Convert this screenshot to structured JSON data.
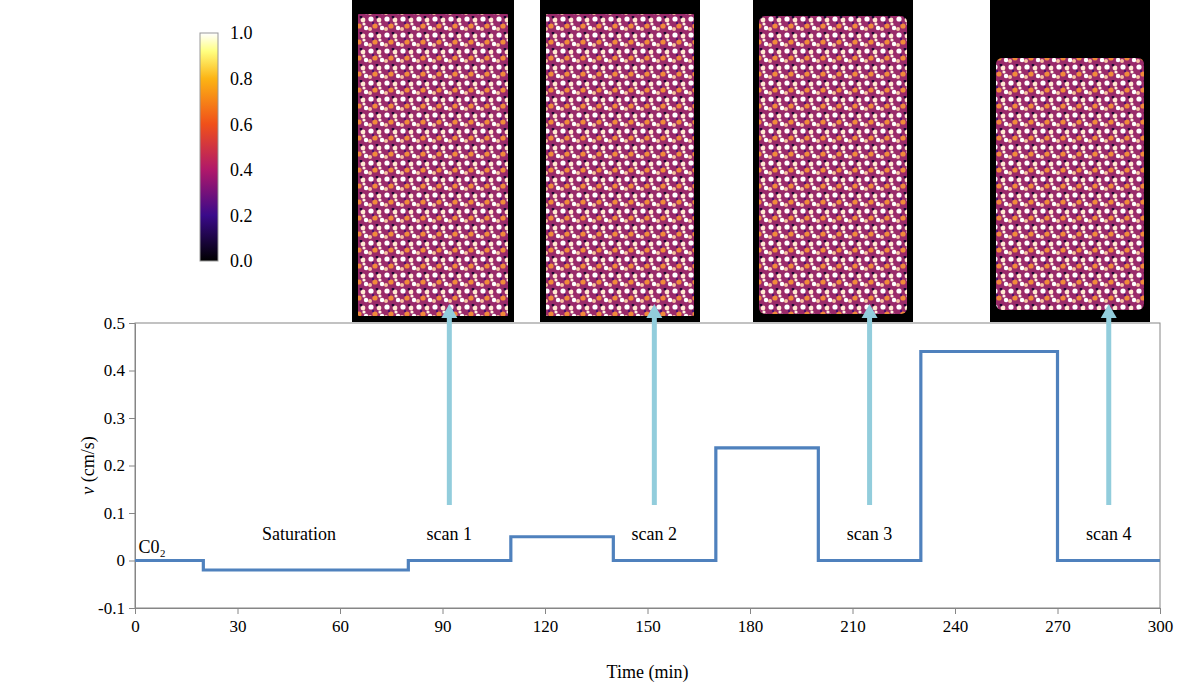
{
  "chart_data": {
    "type": "line",
    "line_style": "step",
    "color": "#4f81bd",
    "x_label": "Time (min)",
    "y_label": "v (cm/s)",
    "x": [
      0,
      20,
      80,
      110,
      140,
      170,
      200,
      230,
      270,
      300
    ],
    "values": [
      0,
      -0.02,
      0,
      0.05,
      0,
      0.237,
      0,
      0.44,
      0,
      0
    ],
    "xlim": [
      0,
      300
    ],
    "xticks": [
      0,
      30,
      60,
      90,
      120,
      150,
      180,
      210,
      240,
      270,
      300
    ],
    "ylim": [
      -0.1,
      0.5
    ],
    "yticks": [
      -0.1,
      0,
      0.1,
      0.2,
      0.3,
      0.4,
      0.5
    ],
    "grid": false,
    "annotations": [
      {
        "text": "C0₂",
        "x": 5,
        "y": 0.03
      },
      {
        "text": "Saturation",
        "x": 48,
        "y": 0.057
      },
      {
        "text": "scan 1",
        "x": 92,
        "y": 0.057,
        "arrow_from": 0.117,
        "arrow_to": 0.54
      },
      {
        "text": "scan 2",
        "x": 152,
        "y": 0.057,
        "arrow_from": 0.117,
        "arrow_to": 0.54
      },
      {
        "text": "scan 3",
        "x": 215,
        "y": 0.057,
        "arrow_from": 0.117,
        "arrow_to": 0.54
      },
      {
        "text": "scan 4",
        "x": 285,
        "y": 0.057,
        "arrow_from": 0.117,
        "arrow_to": 0.54
      }
    ],
    "colorbar": {
      "range": [
        0,
        1
      ],
      "ticks": [
        {
          "value": 0,
          "label": "0.0"
        },
        {
          "value": 0.2,
          "label": "0.2"
        },
        {
          "value": 0.4,
          "label": "0.4"
        },
        {
          "value": 0.6,
          "label": "0.6"
        },
        {
          "value": 0.8,
          "label": "0.8"
        },
        {
          "value": 1,
          "label": "1.0"
        }
      ]
    }
  }
}
